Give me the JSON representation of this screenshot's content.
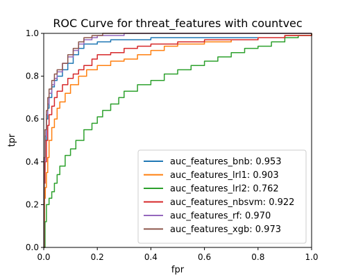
{
  "chart_data": {
    "type": "line",
    "title": "ROC Curve for threat_features with countvec",
    "xlabel": "fpr",
    "ylabel": "tpr",
    "xlim": [
      0,
      1
    ],
    "ylim": [
      0,
      1
    ],
    "xticks": [
      "0.0",
      "0.2",
      "0.4",
      "0.6",
      "0.8",
      "1.0"
    ],
    "yticks": [
      "0.0",
      "0.2",
      "0.4",
      "0.6",
      "0.8",
      "1.0"
    ],
    "grid": false,
    "legend_position": "lower-right",
    "series": [
      {
        "name": "auc_features_bnb: 0.953",
        "color": "#1f77b4",
        "x": [
          0,
          0.002,
          0.005,
          0.01,
          0.015,
          0.02,
          0.03,
          0.04,
          0.05,
          0.07,
          0.09,
          0.11,
          0.13,
          0.15,
          0.2,
          0.25,
          0.3,
          0.4,
          0.5,
          0.6,
          0.7,
          0.8,
          0.9,
          1.0
        ],
        "y": [
          0,
          0.36,
          0.5,
          0.6,
          0.65,
          0.7,
          0.75,
          0.78,
          0.8,
          0.83,
          0.86,
          0.9,
          0.93,
          0.95,
          0.96,
          0.97,
          0.97,
          0.98,
          0.98,
          0.98,
          0.98,
          0.98,
          0.99,
          1.0
        ]
      },
      {
        "name": "auc_features_lrl1: 0.903",
        "color": "#ff7f0e",
        "x": [
          0,
          0.003,
          0.006,
          0.01,
          0.015,
          0.02,
          0.03,
          0.04,
          0.05,
          0.06,
          0.08,
          0.1,
          0.13,
          0.16,
          0.2,
          0.25,
          0.3,
          0.35,
          0.4,
          0.45,
          0.5,
          0.6,
          0.7,
          0.8,
          0.9,
          1.0
        ],
        "y": [
          0,
          0.23,
          0.28,
          0.35,
          0.42,
          0.5,
          0.56,
          0.6,
          0.65,
          0.68,
          0.72,
          0.76,
          0.8,
          0.83,
          0.85,
          0.87,
          0.88,
          0.9,
          0.92,
          0.94,
          0.95,
          0.96,
          0.97,
          0.98,
          0.99,
          1.0
        ]
      },
      {
        "name": "auc_features_lrl2: 0.762",
        "color": "#2ca02c",
        "x": [
          0,
          0.005,
          0.01,
          0.02,
          0.03,
          0.04,
          0.05,
          0.06,
          0.08,
          0.1,
          0.12,
          0.15,
          0.18,
          0.2,
          0.22,
          0.25,
          0.28,
          0.3,
          0.35,
          0.4,
          0.45,
          0.5,
          0.55,
          0.6,
          0.65,
          0.7,
          0.75,
          0.8,
          0.85,
          0.9,
          0.95,
          1.0
        ],
        "y": [
          0,
          0.12,
          0.2,
          0.23,
          0.26,
          0.3,
          0.34,
          0.38,
          0.43,
          0.46,
          0.5,
          0.55,
          0.58,
          0.61,
          0.64,
          0.67,
          0.7,
          0.73,
          0.76,
          0.78,
          0.81,
          0.83,
          0.85,
          0.87,
          0.89,
          0.91,
          0.93,
          0.94,
          0.96,
          0.98,
          0.99,
          1.0
        ]
      },
      {
        "name": "auc_features_nbsvm: 0.922",
        "color": "#d62728",
        "x": [
          0,
          0.002,
          0.005,
          0.01,
          0.015,
          0.02,
          0.03,
          0.04,
          0.05,
          0.07,
          0.09,
          0.11,
          0.13,
          0.15,
          0.18,
          0.2,
          0.25,
          0.3,
          0.35,
          0.4,
          0.5,
          0.6,
          0.7,
          0.8,
          0.9,
          1.0
        ],
        "y": [
          0,
          0.3,
          0.4,
          0.5,
          0.57,
          0.62,
          0.66,
          0.7,
          0.73,
          0.76,
          0.79,
          0.81,
          0.83,
          0.85,
          0.88,
          0.9,
          0.91,
          0.93,
          0.94,
          0.95,
          0.96,
          0.97,
          0.97,
          0.98,
          0.99,
          1.0
        ]
      },
      {
        "name": "auc_features_rf: 0.970",
        "color": "#9467bd",
        "x": [
          0,
          0.002,
          0.005,
          0.01,
          0.015,
          0.02,
          0.03,
          0.04,
          0.05,
          0.07,
          0.09,
          0.11,
          0.13,
          0.15,
          0.18,
          0.2,
          0.25,
          0.3,
          0.4,
          0.5,
          0.6,
          0.7,
          0.8,
          0.9,
          1.0
        ],
        "y": [
          0,
          0.4,
          0.52,
          0.62,
          0.67,
          0.72,
          0.76,
          0.79,
          0.82,
          0.86,
          0.89,
          0.92,
          0.95,
          0.97,
          0.98,
          0.99,
          0.99,
          1.0,
          1.0,
          1.0,
          1.0,
          1.0,
          1.0,
          1.0,
          1.0
        ]
      },
      {
        "name": "auc_features_xgb: 0.973",
        "color": "#8c564b",
        "x": [
          0,
          0.002,
          0.005,
          0.01,
          0.015,
          0.02,
          0.03,
          0.04,
          0.05,
          0.07,
          0.09,
          0.11,
          0.13,
          0.15,
          0.18,
          0.2,
          0.22,
          0.25,
          0.3,
          0.4,
          0.5,
          0.6,
          0.7,
          0.8,
          0.9,
          1.0
        ],
        "y": [
          0,
          0.42,
          0.55,
          0.64,
          0.7,
          0.74,
          0.78,
          0.81,
          0.83,
          0.86,
          0.9,
          0.93,
          0.96,
          0.98,
          0.99,
          0.99,
          1.0,
          1.0,
          1.0,
          1.0,
          1.0,
          1.0,
          1.0,
          1.0,
          1.0,
          1.0
        ]
      }
    ]
  }
}
